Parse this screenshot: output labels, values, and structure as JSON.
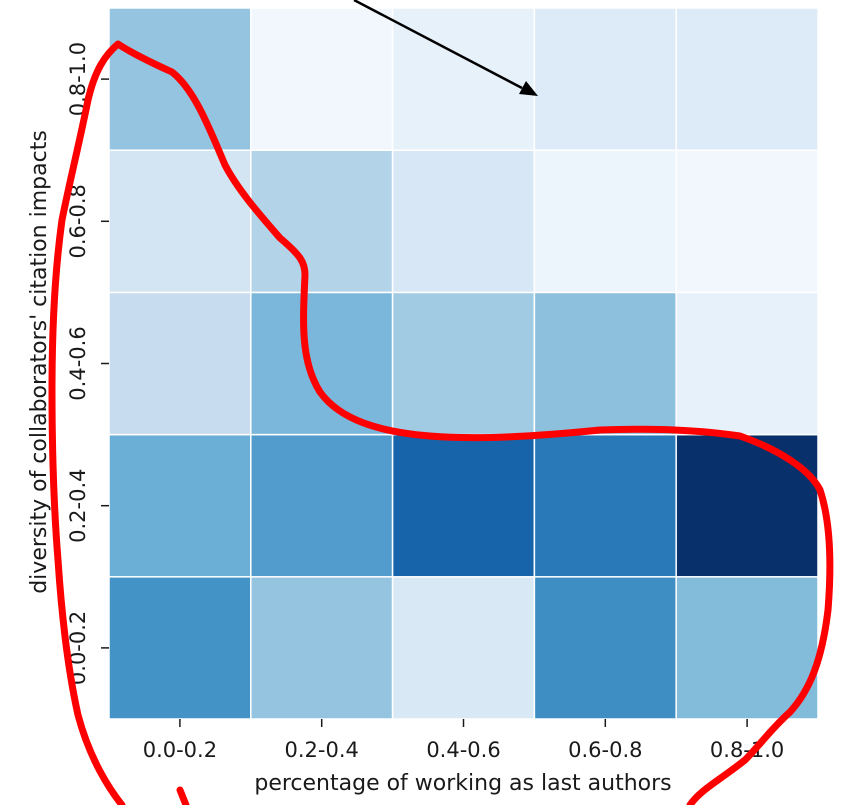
{
  "chart_data": {
    "type": "heatmap",
    "xlabel": "percentage of working as last authors",
    "ylabel": "diversity of collaborators' citation impacts",
    "x_categories": [
      "0.0-0.2",
      "0.2-0.4",
      "0.4-0.6",
      "0.6-0.8",
      "0.8-1.0"
    ],
    "y_categories": [
      "0.0-0.2",
      "0.2-0.4",
      "0.4-0.6",
      "0.6-0.8",
      "0.8-1.0"
    ],
    "y_order": "bottom-to-top",
    "values": [
      [
        0.62,
        0.4,
        0.15,
        0.64,
        0.44
      ],
      [
        0.5,
        0.58,
        0.8,
        0.72,
        1.0
      ],
      [
        0.24,
        0.46,
        0.37,
        0.42,
        0.08
      ],
      [
        0.18,
        0.31,
        0.16,
        0.05,
        0.03
      ],
      [
        0.4,
        0.03,
        0.08,
        0.13,
        0.13
      ]
    ],
    "value_range": [
      0,
      1
    ],
    "colormap": "Blues",
    "colors": [
      "#f7fbff",
      "#deebf7",
      "#c6dbef",
      "#9ecae1",
      "#6baed6",
      "#4292c6",
      "#2171b5",
      "#08519c",
      "#08306b"
    ],
    "grid": true,
    "cell_border_color": "#ffffff"
  },
  "annotations": {
    "arrow_color": "#000000",
    "freehand_outline_color": "#ff0000"
  }
}
